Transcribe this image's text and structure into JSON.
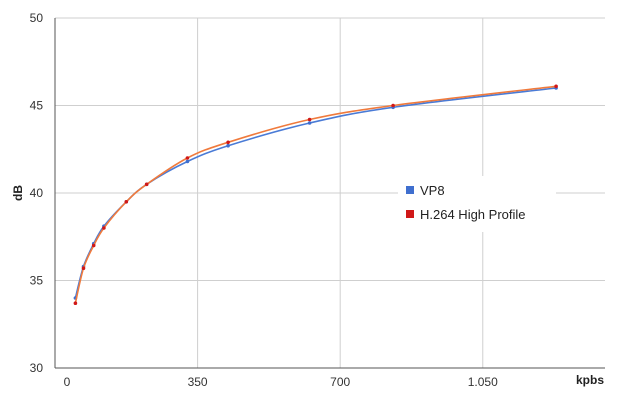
{
  "chart_data": {
    "type": "line",
    "xlabel": "kpbs",
    "ylabel": "dB",
    "xlim": [
      0,
      1350
    ],
    "ylim": [
      30,
      50
    ],
    "x_ticks": [
      0,
      350,
      700,
      1050
    ],
    "x_tick_labels": [
      "0",
      "350",
      "700",
      "1.050"
    ],
    "y_ticks": [
      30,
      35,
      40,
      45,
      50
    ],
    "y_tick_labels": [
      "30",
      "35",
      "40",
      "45",
      "50"
    ],
    "grid": true,
    "legend_position": "right-middle",
    "series": [
      {
        "name": "VP8",
        "color": "#4a7bd6",
        "marker_color": "#3f6fcf",
        "x": [
          50,
          70,
          95,
          120,
          175,
          225,
          325,
          425,
          625,
          830,
          1230
        ],
        "y": [
          34.0,
          35.8,
          37.1,
          38.1,
          39.5,
          40.5,
          41.8,
          42.7,
          44.0,
          44.9,
          46.0
        ]
      },
      {
        "name": "H.264 High Profile",
        "color": "#f07a3c",
        "marker_color": "#d01818",
        "x": [
          50,
          70,
          95,
          120,
          175,
          225,
          325,
          425,
          625,
          830,
          1230
        ],
        "y": [
          33.7,
          35.7,
          37.0,
          38.0,
          39.5,
          40.5,
          42.0,
          42.9,
          44.2,
          45.0,
          46.1
        ]
      }
    ]
  }
}
